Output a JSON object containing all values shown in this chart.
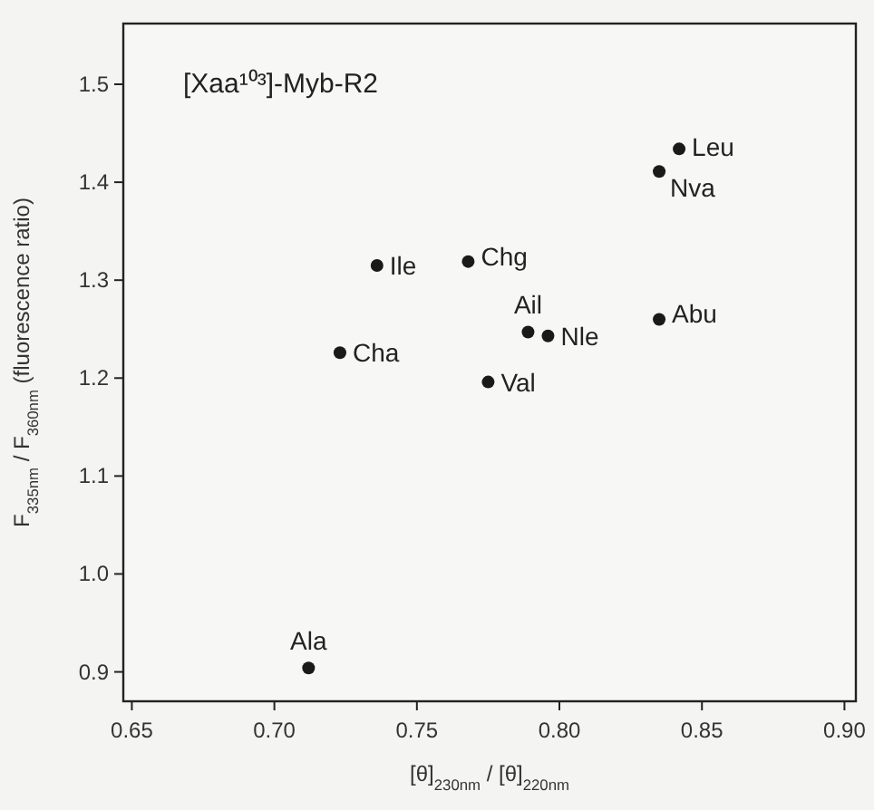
{
  "chart_data": {
    "type": "scatter",
    "title": "[Xaa¹⁰³]-Myb-R2",
    "xlabel": "[θ]$_{230nm}$ / [θ]$_{220nm}$",
    "ylabel": "F$_{335nm}$ / F$_{360nm}$ (fluorescence ratio)",
    "x": [
      0.842,
      0.835,
      0.736,
      0.768,
      0.789,
      0.796,
      0.835,
      0.723,
      0.775,
      0.712
    ],
    "values": [
      1.434,
      1.411,
      1.315,
      1.319,
      1.247,
      1.243,
      1.26,
      1.226,
      1.196,
      0.904
    ],
    "color": "#1a1a1a",
    "marker": "circle",
    "grid": false,
    "xlim": [
      0.647,
      0.904
    ],
    "ylim": [
      0.87,
      1.562
    ],
    "xticks": [
      {
        "value": 0.65,
        "label": "0.65"
      },
      {
        "value": 0.7,
        "label": "0.70"
      },
      {
        "value": 0.75,
        "label": "0.75"
      },
      {
        "value": 0.8,
        "label": "0.80"
      },
      {
        "value": 0.85,
        "label": "0.85"
      },
      {
        "value": 0.9,
        "label": "0.90"
      }
    ],
    "yticks": [
      {
        "value": 0.9,
        "label": "0.9"
      },
      {
        "value": 1.0,
        "label": "1.0"
      },
      1.1,
      1.2,
      1.3,
      1.4,
      1.5
    ],
    "annotations": [
      {
        "text": "Leu",
        "x": 0.842,
        "y": 1.434
      },
      {
        "text": "Nva",
        "x": 0.835,
        "y": 1.411
      },
      {
        "text": "Ile",
        "x": 0.736,
        "y": 1.315
      },
      {
        "text": "Chg",
        "x": 0.768,
        "y": 1.319
      },
      {
        "text": "Ail",
        "x": 0.789,
        "y": 1.247
      },
      {
        "text": "Nle",
        "x": 0.796,
        "y": 1.243
      },
      {
        "text": "Abu",
        "x": 0.835,
        "y": 1.26
      },
      {
        "text": "Cha",
        "x": 0.723,
        "y": 1.226
      },
      {
        "text": "Val",
        "x": 0.775,
        "y": 1.196
      },
      {
        "text": "Ala",
        "x": 0.712,
        "y": 0.904
      }
    ]
  }
}
